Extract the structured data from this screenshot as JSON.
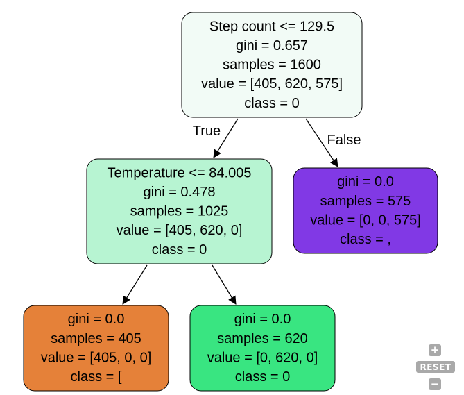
{
  "tree": {
    "nodes": [
      {
        "id": "root",
        "fill": "#f2fbf6",
        "lines": [
          "Step count <= 129.5",
          "gini = 0.657",
          "samples = 1600",
          "value = [405, 620, 575]",
          "class = 0"
        ]
      },
      {
        "id": "left",
        "fill": "#b7f4d2",
        "lines": [
          "Temperature <= 84.005",
          "gini = 0.478",
          "samples = 1025",
          "value = [405, 620, 0]",
          "class = 0"
        ]
      },
      {
        "id": "right",
        "fill": "#8139e5",
        "lines": [
          "gini = 0.0",
          "samples = 575",
          "value = [0, 0, 575]",
          "class = ,"
        ]
      },
      {
        "id": "left-left",
        "fill": "#e58139",
        "lines": [
          "gini = 0.0",
          "samples = 405",
          "value = [405, 0, 0]",
          "class = ["
        ]
      },
      {
        "id": "left-right",
        "fill": "#39e581",
        "lines": [
          "gini = 0.0",
          "samples = 620",
          "value = [0, 620, 0]",
          "class = 0"
        ]
      }
    ],
    "edges": [
      {
        "from": "root",
        "to": "left",
        "label": "True"
      },
      {
        "from": "root",
        "to": "right",
        "label": "False"
      },
      {
        "from": "left",
        "to": "left-left",
        "label": ""
      },
      {
        "from": "left",
        "to": "left-right",
        "label": ""
      }
    ]
  },
  "controls": {
    "zoom_in": "+",
    "reset": "RESET",
    "zoom_out": "−"
  }
}
